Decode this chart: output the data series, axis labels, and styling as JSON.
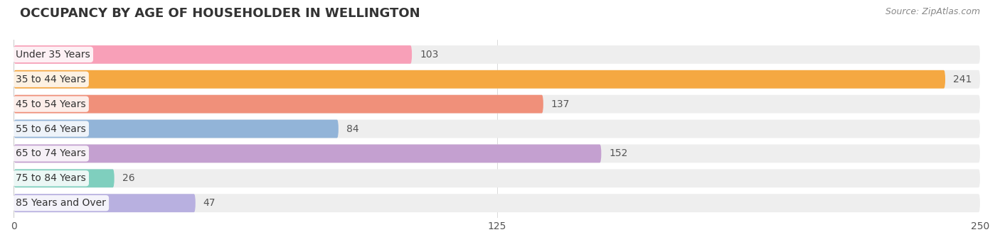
{
  "title": "OCCUPANCY BY AGE OF HOUSEHOLDER IN WELLINGTON",
  "source": "Source: ZipAtlas.com",
  "categories": [
    "Under 35 Years",
    "35 to 44 Years",
    "45 to 54 Years",
    "55 to 64 Years",
    "65 to 74 Years",
    "75 to 84 Years",
    "85 Years and Over"
  ],
  "values": [
    103,
    241,
    137,
    84,
    152,
    26,
    47
  ],
  "bar_colors": [
    "#f8a0b8",
    "#f5a842",
    "#f0907a",
    "#92b4d8",
    "#c4a0d0",
    "#7fcfbe",
    "#b8b0e0"
  ],
  "bar_bg_color": "#eeeeee",
  "background_color": "#ffffff",
  "xlim": [
    0,
    250
  ],
  "xticks": [
    0,
    125,
    250
  ],
  "title_fontsize": 13,
  "label_fontsize": 10,
  "value_fontsize": 10,
  "source_fontsize": 9
}
